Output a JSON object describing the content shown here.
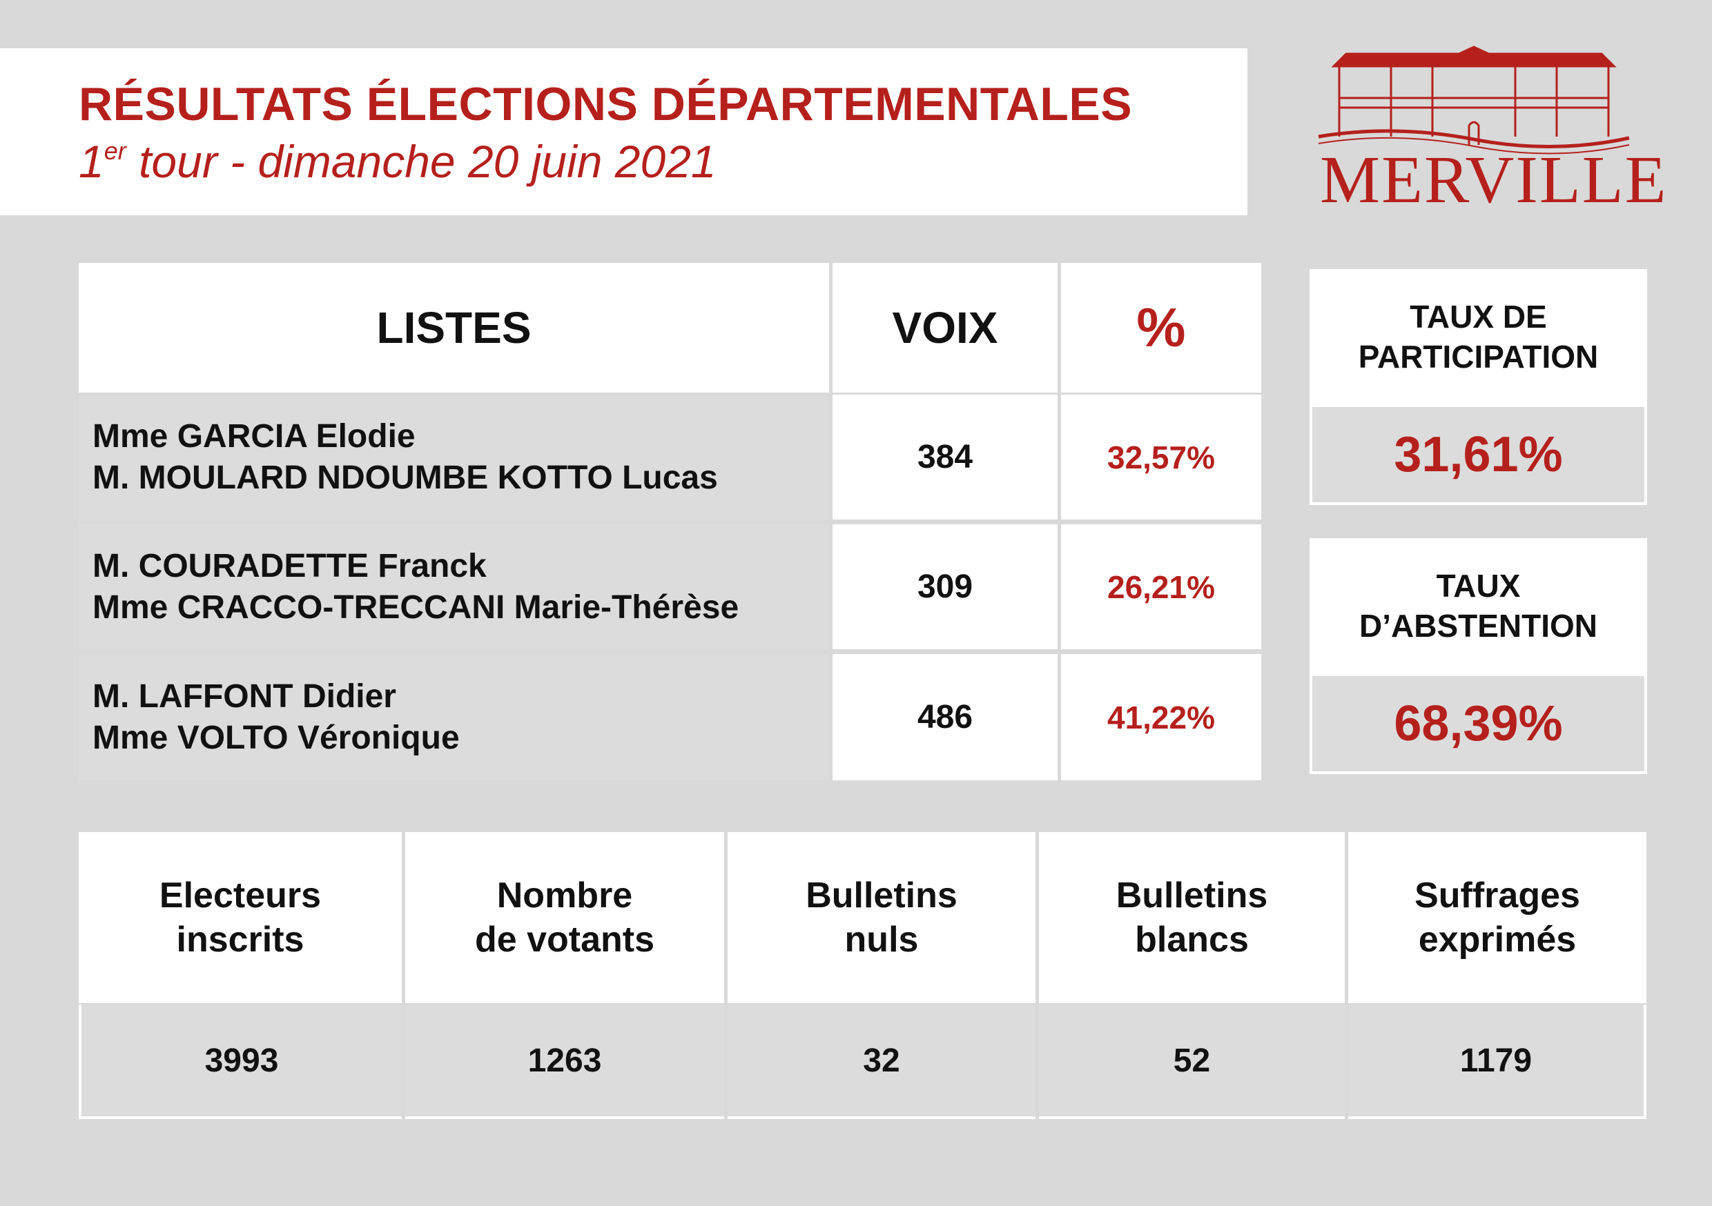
{
  "header": {
    "title": "RÉSULTATS ÉLECTIONS DÉPARTEMENTALES",
    "subtitle_ordinal": "1",
    "subtitle_suffix": "er",
    "subtitle_rest": " tour - dimanche 20 juin 2021"
  },
  "logo": {
    "text": "MERVILLE",
    "icon": "town-hall-icon",
    "color": "#b5201c"
  },
  "results": {
    "headers": {
      "lists": "LISTES",
      "votes": "VOIX",
      "percent": "%"
    },
    "rows": [
      {
        "line1": "Mme GARCIA Elodie",
        "line2": "M. MOULARD NDOUMBE KOTTO Lucas",
        "votes": "384",
        "percent": "32,57%"
      },
      {
        "line1": "M. COURADETTE Franck",
        "line2": "Mme CRACCO-TRECCANI Marie-Thérèse",
        "votes": "309",
        "percent": "26,21%"
      },
      {
        "line1": "M. LAFFONT Didier",
        "line2": "Mme VOLTO Véronique",
        "votes": "486",
        "percent": "41,22%"
      }
    ]
  },
  "participation": {
    "title_line1": "TAUX DE",
    "title_line2": "PARTICIPATION",
    "value": "31,61%"
  },
  "abstention": {
    "title_line1": "TAUX",
    "title_line2": "D’ABSTENTION",
    "value": "68,39%"
  },
  "stats": [
    {
      "label_line1": "Electeurs",
      "label_line2": "inscrits",
      "value": "3993"
    },
    {
      "label_line1": "Nombre",
      "label_line2": "de votants",
      "value": "1263"
    },
    {
      "label_line1": "Bulletins",
      "label_line2": "nuls",
      "value": "32"
    },
    {
      "label_line1": "Bulletins",
      "label_line2": "blancs",
      "value": "52"
    },
    {
      "label_line1": "Suffrages",
      "label_line2": "exprimés",
      "value": "1179"
    }
  ]
}
